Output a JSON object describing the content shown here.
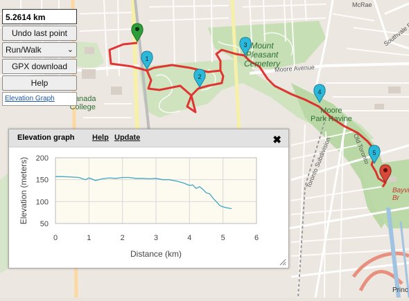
{
  "panel": {
    "distance": "5.2614 km",
    "undo_label": "Undo last point",
    "mode_value": "Run/Walk",
    "gpx_label": "GPX download",
    "help_label": "Help",
    "elevation_link": "Elevation Graph"
  },
  "map": {
    "labels": {
      "mount_pleasant": "Mount\nPleasant\nCemetery",
      "moore_park": "Moore\nPark Ravine",
      "canada_college": "Canada\nCollege",
      "moore_avenue": "Moore Avenue",
      "mcrae": "McRae",
      "southvale": "Southvale Drive",
      "bayview": "Bayvi\nBr",
      "princ": "Princ",
      "toronto_subdivision": "Toronto Subdivision",
      "old_toronto": "Old Toronto"
    },
    "markers": [
      "1",
      "2",
      "3",
      "4",
      "5"
    ],
    "colors": {
      "route": "#e02020",
      "marker_blue": "#2cb8d8",
      "marker_green": "#2e9e3a",
      "marker_red": "#d9473a",
      "park": "#c8dfb9"
    }
  },
  "dialog": {
    "title": "Elevation graph",
    "help": "Help",
    "update": "Update",
    "close_icon": "close-icon",
    "resize_icon": "resize-grip-icon"
  },
  "chart_data": {
    "type": "line",
    "xlabel": "Distance (km)",
    "ylabel": "Elevation (meters)",
    "xlim": [
      0,
      6
    ],
    "ylim": [
      50,
      200
    ],
    "xticks": [
      0,
      1,
      2,
      3,
      4,
      5,
      6
    ],
    "yticks": [
      50,
      100,
      150,
      200
    ],
    "grid": true,
    "series": [
      {
        "color": "#3fa6c6",
        "x": [
          0.0,
          0.2,
          0.5,
          0.7,
          0.9,
          1.0,
          1.2,
          1.4,
          1.6,
          1.8,
          2.0,
          2.2,
          2.4,
          2.6,
          2.8,
          3.0,
          3.2,
          3.4,
          3.6,
          3.7,
          3.8,
          3.9,
          4.0,
          4.1,
          4.2,
          4.3,
          4.4,
          4.5,
          4.6,
          4.7,
          4.8,
          4.9,
          5.0,
          5.1,
          5.26
        ],
        "y": [
          157,
          157,
          156,
          155,
          150,
          154,
          148,
          152,
          154,
          153,
          155,
          155,
          153,
          153,
          152,
          153,
          150,
          150,
          147,
          145,
          143,
          140,
          137,
          138,
          130,
          134,
          128,
          120,
          118,
          108,
          100,
          91,
          88,
          86,
          84
        ]
      }
    ]
  }
}
